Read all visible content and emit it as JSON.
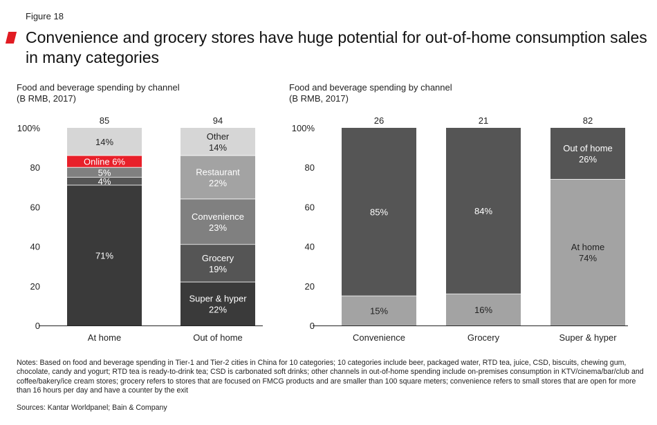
{
  "figure_label": "Figure 18",
  "title": "Convenience and grocery stores have huge potential for out-of-home consumption sales in many categories",
  "colors": {
    "accent": "#e11b22",
    "dark": "#3a3a3a",
    "mid_dark": "#555555",
    "mid": "#808080",
    "light": "#a3a3a3",
    "lighter": "#b8b8b8",
    "lightest": "#d6d6d6",
    "online": "#e8202a"
  },
  "chart_data": [
    {
      "type": "bar",
      "stacked": true,
      "subtitle_line1": "Food and beverage spending by channel",
      "subtitle_line2": "(B RMB, 2017)",
      "yticks": [
        "0",
        "20",
        "40",
        "60",
        "80",
        "100%"
      ],
      "ylim": [
        0,
        100
      ],
      "categories": [
        "At home",
        "Out of home"
      ],
      "totals": [
        "85",
        "94"
      ],
      "bars": [
        {
          "segments": [
            {
              "value": 71,
              "label": "71%",
              "color": "#3a3a3a",
              "text_color": "#ffffff"
            },
            {
              "value": 4,
              "label": "4%",
              "color": "#555555",
              "text_color": "#ffffff"
            },
            {
              "value": 5,
              "label": "5%",
              "color": "#808080",
              "text_color": "#ffffff"
            },
            {
              "value": 6,
              "label": "Online 6%",
              "color": "#e8202a",
              "text_color": "#ffffff"
            },
            {
              "value": 14,
              "label": "14%",
              "color": "#d6d6d6",
              "text_color": "#222222"
            }
          ]
        },
        {
          "segments": [
            {
              "value": 22,
              "label": "Super & hyper\n22%",
              "color": "#3a3a3a",
              "text_color": "#ffffff"
            },
            {
              "value": 19,
              "label": "Grocery\n19%",
              "color": "#555555",
              "text_color": "#ffffff"
            },
            {
              "value": 23,
              "label": "Convenience\n23%",
              "color": "#808080",
              "text_color": "#ffffff"
            },
            {
              "value": 22,
              "label": "Restaurant\n22%",
              "color": "#a3a3a3",
              "text_color": "#ffffff"
            },
            {
              "value": 14,
              "label": "Other\n14%",
              "color": "#d6d6d6",
              "text_color": "#222222"
            }
          ]
        }
      ]
    },
    {
      "type": "bar",
      "stacked": true,
      "subtitle_line1": "Food and beverage spending by channel",
      "subtitle_line2": "(B RMB, 2017)",
      "yticks": [
        "0",
        "20",
        "40",
        "60",
        "80",
        "100%"
      ],
      "ylim": [
        0,
        100
      ],
      "categories": [
        "Convenience",
        "Grocery",
        "Super & hyper"
      ],
      "totals": [
        "26",
        "21",
        "82"
      ],
      "bars": [
        {
          "segments": [
            {
              "value": 15,
              "label": "15%",
              "color": "#a3a3a3",
              "text_color": "#222222"
            },
            {
              "value": 85,
              "label": "85%",
              "color": "#555555",
              "text_color": "#ffffff"
            }
          ]
        },
        {
          "segments": [
            {
              "value": 16,
              "label": "16%",
              "color": "#a3a3a3",
              "text_color": "#222222"
            },
            {
              "value": 84,
              "label": "84%",
              "color": "#555555",
              "text_color": "#ffffff"
            }
          ]
        },
        {
          "segments": [
            {
              "value": 74,
              "label": "At home\n74%",
              "color": "#a3a3a3",
              "text_color": "#222222"
            },
            {
              "value": 26,
              "label": "Out of home\n26%",
              "color": "#555555",
              "text_color": "#ffffff"
            }
          ]
        }
      ]
    }
  ],
  "notes": "Notes: Based on food and beverage spending in Tier-1 and Tier-2 cities in China for 10 categories; 10 categories include beer, packaged water, RTD tea, juice, CSD, biscuits, chewing gum, chocolate, candy and yogurt; RTD tea is ready-to-drink tea; CSD is carbonated soft drinks; other channels in out-of-home spending include on-premises consumption in KTV/cinema/bar/club and coffee/bakery/ice cream stores; grocery refers to stores that are focused on FMCG products and are smaller than 100 square meters; convenience refers to small stores that are open for more than 16 hours per day and have a counter by the exit",
  "sources": "Sources: Kantar Worldpanel; Bain & Company"
}
